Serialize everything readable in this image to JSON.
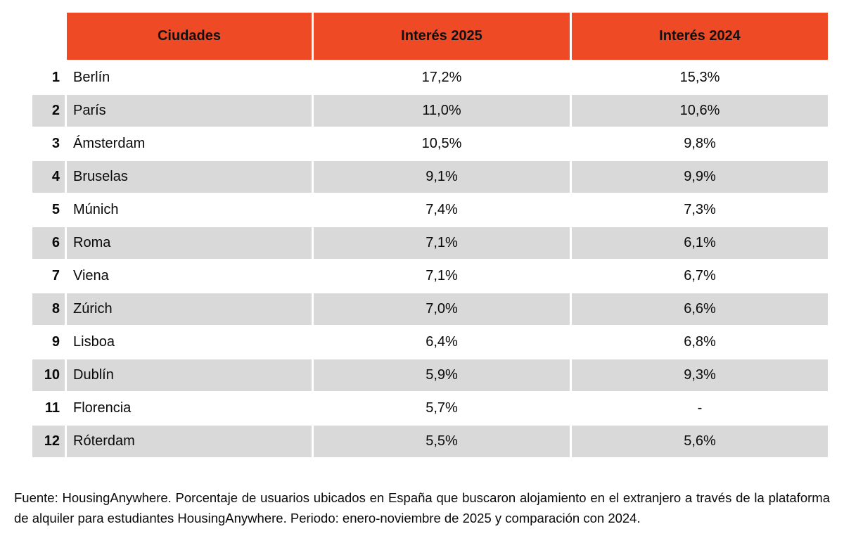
{
  "colors": {
    "header_bg": "#EF4A26",
    "row_alt": "#D9D9D9",
    "text": "#0A0A0A"
  },
  "table": {
    "headers": {
      "cities": "Ciudades",
      "interest_2025": "Interés 2025",
      "interest_2024": "Interés 2024"
    },
    "rows": [
      {
        "rank": "1",
        "city": "Berlín",
        "interest_2025": "17,2%",
        "interest_2024": "15,3%"
      },
      {
        "rank": "2",
        "city": "París",
        "interest_2025": "11,0%",
        "interest_2024": "10,6%"
      },
      {
        "rank": "3",
        "city": "Ámsterdam",
        "interest_2025": "10,5%",
        "interest_2024": "9,8%"
      },
      {
        "rank": "4",
        "city": "Bruselas",
        "interest_2025": "9,1%",
        "interest_2024": "9,9%"
      },
      {
        "rank": "5",
        "city": "Múnich",
        "interest_2025": "7,4%",
        "interest_2024": "7,3%"
      },
      {
        "rank": "6",
        "city": "Roma",
        "interest_2025": "7,1%",
        "interest_2024": "6,1%"
      },
      {
        "rank": "7",
        "city": "Viena",
        "interest_2025": "7,1%",
        "interest_2024": "6,7%"
      },
      {
        "rank": "8",
        "city": "Zúrich",
        "interest_2025": "7,0%",
        "interest_2024": "6,6%"
      },
      {
        "rank": "9",
        "city": "Lisboa",
        "interest_2025": "6,4%",
        "interest_2024": "6,8%"
      },
      {
        "rank": "10",
        "city": "Dublín",
        "interest_2025": "5,9%",
        "interest_2024": "9,3%"
      },
      {
        "rank": "11",
        "city": "Florencia",
        "interest_2025": "5,7%",
        "interest_2024": "-"
      },
      {
        "rank": "12",
        "city": "Róterdam",
        "interest_2025": "5,5%",
        "interest_2024": "5,6%"
      }
    ]
  },
  "footer": {
    "source_note": "Fuente: HousingAnywhere. Porcentaje de usuarios ubicados en España que buscaron alojamiento en el extranjero a través de la plataforma de alquiler para estudiantes HousingAnywhere. Periodo: enero-noviembre de 2025 y comparación con 2024."
  },
  "chart_data": {
    "type": "table",
    "title": "",
    "columns": [
      "Ciudades",
      "Interés 2025",
      "Interés 2024"
    ],
    "categories": [
      "Berlín",
      "París",
      "Ámsterdam",
      "Bruselas",
      "Múnich",
      "Roma",
      "Viena",
      "Zúrich",
      "Lisboa",
      "Dublín",
      "Florencia",
      "Róterdam"
    ],
    "series": [
      {
        "name": "Interés 2025",
        "values": [
          17.2,
          11.0,
          10.5,
          9.1,
          7.4,
          7.1,
          7.1,
          7.0,
          6.4,
          5.9,
          5.7,
          5.5
        ]
      },
      {
        "name": "Interés 2024",
        "values": [
          15.3,
          10.6,
          9.8,
          9.9,
          7.3,
          6.1,
          6.7,
          6.6,
          6.8,
          9.3,
          null,
          5.6
        ]
      }
    ],
    "layout": "ranked table, alternating gray rows, orange header band, rank column without header"
  }
}
